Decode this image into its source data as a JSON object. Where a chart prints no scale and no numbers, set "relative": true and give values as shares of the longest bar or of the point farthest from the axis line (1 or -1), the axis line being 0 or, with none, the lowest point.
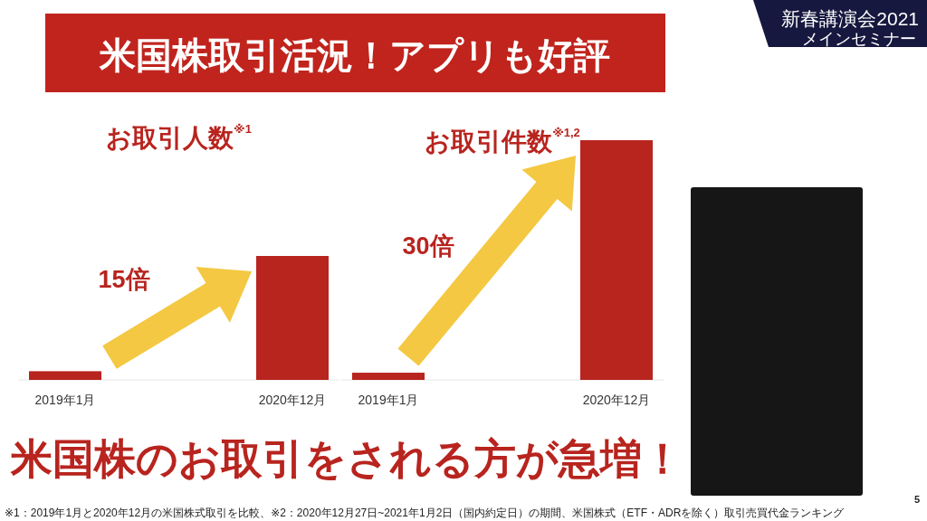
{
  "chart_data": [
    {
      "type": "other",
      "title": "米国株取引活況！アプリも好評",
      "annotations": [
        "新春講演会2021",
        "メインセミナー",
        "米国株のお取引をされる方が急増！",
        "※1：2019年1月と2020年12月の米国株式取引を比較、※2：2020年12月27日~2021年1月2日（国内約定日）の期間、米国株式（ETF・ADRを除く）取引売買代金ランキング",
        "5"
      ]
    },
    {
      "type": "bar",
      "title": "お取引人数$^{※1}$",
      "categories": [
        "2019年1月",
        "2020年12月"
      ],
      "values": [
        0.07,
        1
      ],
      "color": "#b8241e",
      "relative": true,
      "annotations": [
        "15倍"
      ]
    },
    {
      "type": "bar",
      "title": "お取引件数$^{※1,2}$",
      "categories": [
        "2019年1月",
        "2020年12月"
      ],
      "values": [
        0.03,
        1
      ],
      "color": "#b8241e",
      "relative": true,
      "annotations": [
        "30倍"
      ]
    }
  ]
}
